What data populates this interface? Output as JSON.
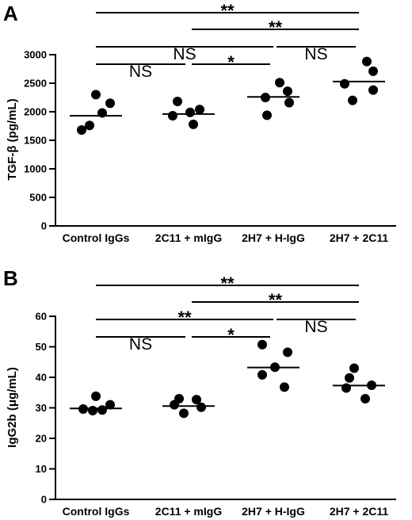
{
  "chart_data": [
    {
      "panel": "A",
      "type": "scatter",
      "ylabel": "TGF-β (pg/mL)",
      "ylim": [
        0,
        3000
      ],
      "yticks": [
        0,
        500,
        1000,
        1500,
        2000,
        2500,
        3000
      ],
      "categories": [
        "Control IgGs",
        "2C11 + mIgG",
        "2H7 + H-IgG",
        "2H7 + 2C11"
      ],
      "points": [
        [
          2300,
          2150,
          1980,
          1760,
          1680
        ],
        [
          2180,
          2040,
          1990,
          1930,
          1780
        ],
        [
          2510,
          2360,
          2250,
          2160,
          1940
        ],
        [
          2880,
          2710,
          2490,
          2380,
          2200
        ]
      ],
      "means": [
        1930,
        1960,
        2260,
        2530
      ],
      "comparisons": [
        {
          "from": 0,
          "to": 3,
          "label": "**"
        },
        {
          "from": 1,
          "to": 3,
          "label": "**"
        },
        {
          "from": 0,
          "to": 2,
          "label": "NS"
        },
        {
          "from": 2,
          "to": 3,
          "label": "NS"
        },
        {
          "from": 0,
          "to": 1,
          "label": "NS"
        },
        {
          "from": 1,
          "to": 2,
          "label": "*"
        }
      ]
    },
    {
      "panel": "B",
      "type": "scatter",
      "ylabel": "IgG2b (μg/mL)",
      "ylim": [
        0,
        60
      ],
      "yticks": [
        0,
        10,
        20,
        30,
        40,
        50,
        60
      ],
      "categories": [
        "Control IgGs",
        "2C11 + mIgG",
        "2H7 + H-IgG",
        "2H7 + 2C11"
      ],
      "points": [
        [
          33.8,
          31.0,
          29.6,
          29.3,
          29.1
        ],
        [
          33.0,
          32.7,
          31.0,
          30.2,
          28.2
        ],
        [
          50.7,
          48.2,
          43.3,
          40.8,
          36.8
        ],
        [
          43.0,
          39.8,
          37.4,
          36.5,
          33.0
        ]
      ],
      "means": [
        29.8,
        30.6,
        43.2,
        37.3
      ],
      "comparisons": [
        {
          "from": 0,
          "to": 3,
          "label": "**"
        },
        {
          "from": 1,
          "to": 3,
          "label": "**"
        },
        {
          "from": 0,
          "to": 2,
          "label": "**"
        },
        {
          "from": 2,
          "to": 3,
          "label": "NS"
        },
        {
          "from": 0,
          "to": 1,
          "label": "NS"
        },
        {
          "from": 1,
          "to": 2,
          "label": "*"
        }
      ]
    }
  ]
}
